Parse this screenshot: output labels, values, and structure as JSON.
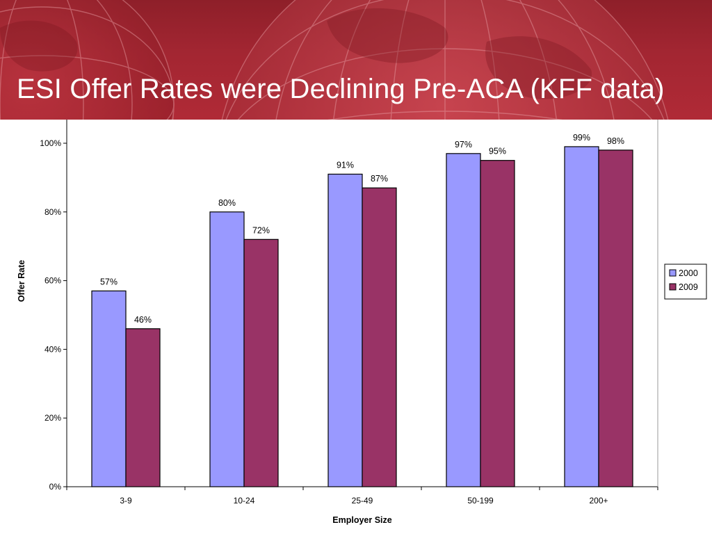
{
  "slide": {
    "title": "ESI Offer Rates were Declining Pre-ACA (KFF data)"
  },
  "colors": {
    "banner": "#a32632",
    "series_2000": "#9999ff",
    "series_2009": "#993366"
  },
  "chart_data": {
    "type": "bar",
    "title": "",
    "xlabel": "Employer Size",
    "ylabel": "Offer Rate",
    "categories": [
      "3-9",
      "10-24",
      "25-49",
      "50-199",
      "200+"
    ],
    "series": [
      {
        "name": "2000",
        "values": [
          57,
          80,
          91,
          97,
          99
        ],
        "labels": [
          "57%",
          "80%",
          "91%",
          "97%",
          "99%"
        ],
        "color": "#9999ff"
      },
      {
        "name": "2009",
        "values": [
          46,
          72,
          87,
          95,
          98
        ],
        "labels": [
          "46%",
          "72%",
          "87%",
          "95%",
          "98%"
        ],
        "color": "#993366"
      }
    ],
    "ylim": [
      0,
      100
    ],
    "yticks": [
      0,
      20,
      40,
      60,
      80,
      100
    ],
    "ytick_labels": [
      "0%",
      "20%",
      "40%",
      "60%",
      "80%",
      "100%"
    ],
    "grid": false,
    "legend_position": "right"
  }
}
